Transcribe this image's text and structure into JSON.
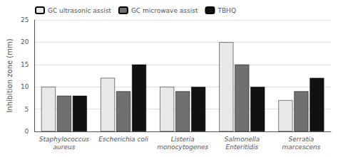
{
  "chart_data": {
    "type": "bar",
    "categories": [
      "Staphylococcus\naureus",
      "Escherichia coli",
      "Listeria\nmonocytogenes",
      "Salmonella\nEnteritidis",
      "Serratia\nmarcescens"
    ],
    "series": [
      {
        "name": "GC ultrasonic assist",
        "color": "#e8e8e8",
        "values": [
          10,
          12,
          10,
          20,
          7
        ]
      },
      {
        "name": "GC microwave assist",
        "color": "#707070",
        "values": [
          8,
          9,
          9,
          15,
          9
        ]
      },
      {
        "name": "TBHQ",
        "color": "#111111",
        "values": [
          8,
          15,
          10,
          10,
          12
        ]
      }
    ],
    "ylabel": "Inhibition zone (mm)",
    "ylim": [
      0,
      25
    ],
    "yticks": [
      0,
      5,
      10,
      15,
      20,
      25
    ],
    "grid": true,
    "legend": "upper left"
  }
}
